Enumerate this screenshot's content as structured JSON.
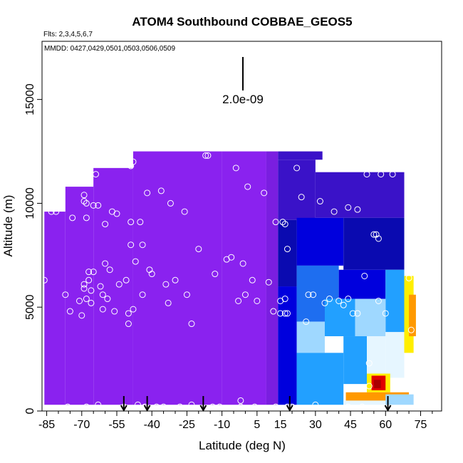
{
  "chart_data": {
    "type": "heatmap",
    "title": "ATOM4 Southbound COBBAE_GEOS5",
    "subtitle": "Flts: 2,3,4,5,6,7",
    "annotation": "MMDD: 0427,0429,0501,0503,0506,0509",
    "xlabel": "Latitude (deg N)",
    "ylabel": "Altitude (m)",
    "xlim": [
      -87,
      84
    ],
    "ylim": [
      0,
      17800
    ],
    "x_ticks": [
      -85,
      -70,
      -55,
      -40,
      -25,
      -10,
      5,
      15,
      30,
      45,
      60,
      75
    ],
    "x_minor_ticks": [
      -80,
      -75,
      -65,
      -60,
      -50,
      -45,
      -35,
      -30,
      -20,
      -15,
      -5,
      0,
      10,
      20,
      25,
      35,
      40,
      50,
      55,
      65,
      70,
      80
    ],
    "y_ticks": [
      0,
      5000,
      10000,
      15000
    ],
    "scale_bar": {
      "label": "2.0e-09",
      "value": 2e-09
    },
    "colors": {
      "purple": "#8a22ef",
      "purple_dark": "#7a1ee0",
      "indigo": "#3a12c8",
      "blue_dark": "#0a0ab0",
      "blue": "#0000dd",
      "blue_mid": "#1e6ef0",
      "sky": "#22a0ff",
      "light_blue": "#9fd8ff",
      "pale": "#e6f6ff",
      "yellow": "#ffee00",
      "orange": "#ff9900",
      "red": "#e00000",
      "dark_red": "#aa0000"
    },
    "regions": [
      {
        "lat": [
          -86,
          -77
        ],
        "alt": [
          300,
          9600
        ],
        "color": "purple"
      },
      {
        "lat": [
          -77,
          -65
        ],
        "alt": [
          300,
          10800
        ],
        "color": "purple"
      },
      {
        "lat": [
          -65,
          -48
        ],
        "alt": [
          300,
          11700
        ],
        "color": "purple"
      },
      {
        "lat": [
          -48,
          -10
        ],
        "alt": [
          300,
          12500
        ],
        "color": "purple"
      },
      {
        "lat": [
          -10,
          9
        ],
        "alt": [
          300,
          12500
        ],
        "color": "purple"
      },
      {
        "lat": [
          9,
          14
        ],
        "alt": [
          300,
          12500
        ],
        "color": "purple_dark"
      },
      {
        "lat": [
          14,
          33
        ],
        "alt": [
          12100,
          12500
        ],
        "color": "indigo"
      },
      {
        "lat": [
          14,
          30
        ],
        "alt": [
          9200,
          12100
        ],
        "color": "indigo"
      },
      {
        "lat": [
          30,
          68
        ],
        "alt": [
          9300,
          11500
        ],
        "color": "indigo"
      },
      {
        "lat": [
          14,
          22
        ],
        "alt": [
          6000,
          9200
        ],
        "color": "blue_dark"
      },
      {
        "lat": [
          22,
          42
        ],
        "alt": [
          7000,
          9300
        ],
        "color": "blue"
      },
      {
        "lat": [
          42,
          68
        ],
        "alt": [
          6800,
          9300
        ],
        "color": "blue_dark"
      },
      {
        "lat": [
          14,
          22
        ],
        "alt": [
          300,
          6000
        ],
        "color": "blue"
      },
      {
        "lat": [
          22,
          40
        ],
        "alt": [
          4300,
          7000
        ],
        "color": "blue_mid"
      },
      {
        "lat": [
          40,
          60
        ],
        "alt": [
          5400,
          6800
        ],
        "color": "blue"
      },
      {
        "lat": [
          60,
          68
        ],
        "alt": [
          3800,
          6800
        ],
        "color": "sky"
      },
      {
        "lat": [
          22,
          34
        ],
        "alt": [
          2800,
          4300
        ],
        "color": "light_blue"
      },
      {
        "lat": [
          34,
          47
        ],
        "alt": [
          3600,
          5400
        ],
        "color": "sky"
      },
      {
        "lat": [
          47,
          60
        ],
        "alt": [
          3600,
          5400
        ],
        "color": "light_blue"
      },
      {
        "lat": [
          22,
          42
        ],
        "alt": [
          300,
          2800
        ],
        "color": "sky"
      },
      {
        "lat": [
          42,
          52
        ],
        "alt": [
          1300,
          3600
        ],
        "color": "sky"
      },
      {
        "lat": [
          52,
          60
        ],
        "alt": [
          1800,
          3600
        ],
        "color": "pale"
      },
      {
        "lat": [
          60,
          68
        ],
        "alt": [
          1600,
          3800
        ],
        "color": "pale"
      },
      {
        "lat": [
          68,
          72
        ],
        "alt": [
          2800,
          6500
        ],
        "color": "yellow"
      },
      {
        "lat": [
          70,
          73
        ],
        "alt": [
          3600,
          5600
        ],
        "color": "orange"
      },
      {
        "lat": [
          52,
          62
        ],
        "alt": [
          900,
          1800
        ],
        "color": "yellow"
      },
      {
        "lat": [
          54,
          60
        ],
        "alt": [
          1000,
          1700
        ],
        "color": "red"
      },
      {
        "lat": [
          55,
          58
        ],
        "alt": [
          1100,
          1500
        ],
        "color": "dark_red"
      },
      {
        "lat": [
          43,
          70
        ],
        "alt": [
          500,
          900
        ],
        "color": "orange"
      },
      {
        "lat": [
          42,
          60
        ],
        "alt": [
          300,
          500
        ],
        "color": "pale"
      },
      {
        "lat": [
          60,
          72
        ],
        "alt": [
          300,
          800
        ],
        "color": "light_blue"
      }
    ],
    "arrows_lat": [
      -52,
      -42,
      -18,
      19,
      61
    ],
    "points": [
      [
        -86,
        6300
      ],
      [
        -83,
        9600
      ],
      [
        -81,
        9600
      ],
      [
        -77,
        5600
      ],
      [
        -75,
        4800
      ],
      [
        -76,
        200
      ],
      [
        -74,
        9300
      ],
      [
        -71,
        5300
      ],
      [
        -70,
        4600
      ],
      [
        -69,
        6100
      ],
      [
        -69,
        5900
      ],
      [
        -69,
        10400
      ],
      [
        -69,
        10100
      ],
      [
        -68,
        10000
      ],
      [
        -68,
        9300
      ],
      [
        -68,
        5400
      ],
      [
        -68,
        200
      ],
      [
        -67,
        6700
      ],
      [
        -67,
        6300
      ],
      [
        -66,
        5800
      ],
      [
        -66,
        5200
      ],
      [
        -65,
        6700
      ],
      [
        -65,
        9900
      ],
      [
        -64,
        11400
      ],
      [
        -63,
        9900
      ],
      [
        -63,
        300
      ],
      [
        -61,
        5600
      ],
      [
        -61,
        4900
      ],
      [
        -62,
        6000
      ],
      [
        -60,
        7100
      ],
      [
        -60,
        9000
      ],
      [
        -59,
        5400
      ],
      [
        -58,
        6800
      ],
      [
        -58,
        12000
      ],
      [
        -57,
        9600
      ],
      [
        -56,
        4800
      ],
      [
        -55,
        9500
      ],
      [
        -54,
        6100
      ],
      [
        -52,
        200
      ],
      [
        -51,
        6300
      ],
      [
        -50,
        4700
      ],
      [
        -50,
        4200
      ],
      [
        -49,
        11800
      ],
      [
        -49,
        8000
      ],
      [
        -49,
        9100
      ],
      [
        -48,
        12000
      ],
      [
        -48,
        4900
      ],
      [
        -47,
        7200
      ],
      [
        -46,
        300
      ],
      [
        -45,
        9100
      ],
      [
        -44,
        8000
      ],
      [
        -44,
        5600
      ],
      [
        -43,
        200
      ],
      [
        -42,
        10500
      ],
      [
        -41,
        6800
      ],
      [
        -40,
        6600
      ],
      [
        -38,
        200
      ],
      [
        -36,
        10600
      ],
      [
        -35,
        200
      ],
      [
        -34,
        6100
      ],
      [
        -33,
        5200
      ],
      [
        -32,
        10000
      ],
      [
        -30,
        6300
      ],
      [
        -28,
        200
      ],
      [
        -26,
        9600
      ],
      [
        -25,
        5600
      ],
      [
        -23,
        4200
      ],
      [
        -23,
        300
      ],
      [
        -20,
        7800
      ],
      [
        -17,
        12300
      ],
      [
        -16,
        12300
      ],
      [
        -14,
        200
      ],
      [
        -13,
        6600
      ],
      [
        -11,
        200
      ],
      [
        -8,
        7300
      ],
      [
        -6,
        7400
      ],
      [
        -4,
        11700
      ],
      [
        -3,
        5300
      ],
      [
        -1,
        7100
      ],
      [
        -2,
        500
      ],
      [
        -2,
        200
      ],
      [
        0,
        5600
      ],
      [
        1,
        10800
      ],
      [
        3,
        6300
      ],
      [
        4,
        200
      ],
      [
        5,
        5300
      ],
      [
        8,
        10500
      ],
      [
        10,
        6200
      ],
      [
        12,
        4800
      ],
      [
        13,
        200
      ],
      [
        13,
        9100
      ],
      [
        15,
        4700
      ],
      [
        15,
        5300
      ],
      [
        16,
        9100
      ],
      [
        17,
        9000
      ],
      [
        17,
        5400
      ],
      [
        17,
        4700
      ],
      [
        18,
        7800
      ],
      [
        18,
        4700
      ],
      [
        18,
        200
      ],
      [
        20,
        200
      ],
      [
        22,
        11700
      ],
      [
        24,
        10300
      ],
      [
        26,
        4300
      ],
      [
        27,
        5600
      ],
      [
        29,
        5600
      ],
      [
        30,
        300
      ],
      [
        32,
        10100
      ],
      [
        34,
        5200
      ],
      [
        36,
        5400
      ],
      [
        38,
        9600
      ],
      [
        40,
        5300
      ],
      [
        42,
        5100
      ],
      [
        44,
        9800
      ],
      [
        44,
        5400
      ],
      [
        44,
        200
      ],
      [
        46,
        4700
      ],
      [
        48,
        9700
      ],
      [
        48,
        4700
      ],
      [
        50,
        200
      ],
      [
        52,
        11400
      ],
      [
        51,
        6500
      ],
      [
        53,
        2300
      ],
      [
        53,
        1200
      ],
      [
        55,
        8500
      ],
      [
        56,
        8500
      ],
      [
        57,
        5300
      ],
      [
        57,
        8300
      ],
      [
        58,
        11400
      ],
      [
        63,
        11400
      ],
      [
        60,
        4700
      ],
      [
        70,
        6400
      ],
      [
        71,
        3900
      ]
    ]
  }
}
